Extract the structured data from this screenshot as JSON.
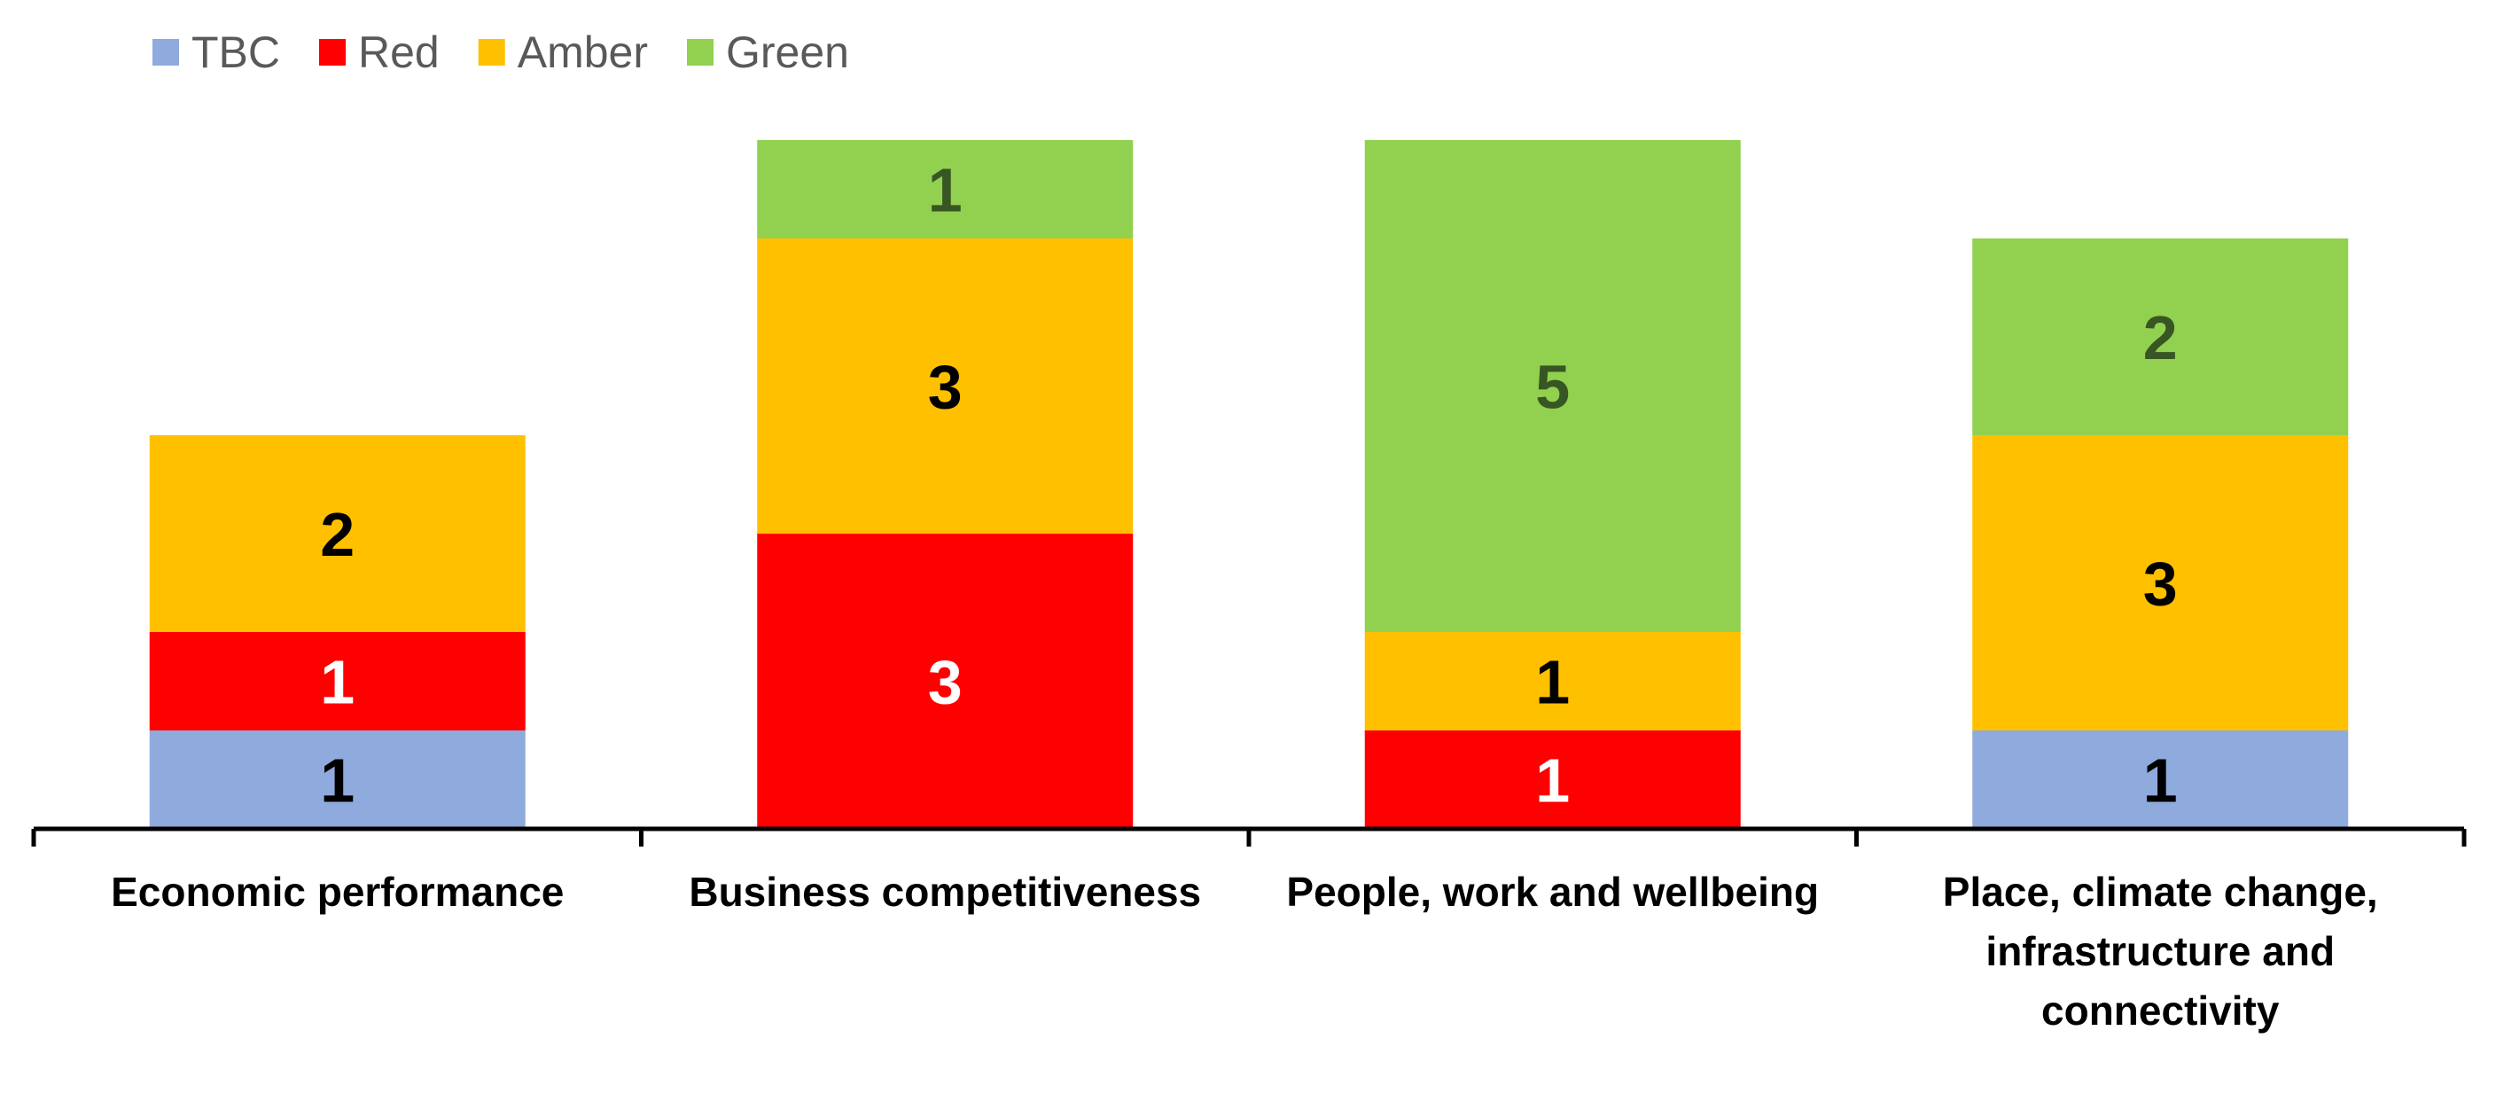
{
  "chart_data": {
    "type": "bar",
    "stacked": true,
    "categories": [
      [
        "Economic performance"
      ],
      [
        "Business competitiveness"
      ],
      [
        "People, work and wellbeing"
      ],
      [
        "Place, climate change,",
        "infrastructure and",
        "connectivity"
      ]
    ],
    "series": [
      {
        "name": "TBC",
        "color": "#8FAADC",
        "label_color": "#000000",
        "values": [
          1,
          0,
          0,
          1
        ]
      },
      {
        "name": "Red",
        "color": "#FF0000",
        "label_color": "#FFFFFF",
        "values": [
          1,
          3,
          1,
          0
        ]
      },
      {
        "name": "Amber",
        "color": "#FFC000",
        "label_color": "#000000",
        "values": [
          2,
          3,
          1,
          3
        ]
      },
      {
        "name": "Green",
        "color": "#92D050",
        "label_color": "#375623",
        "values": [
          0,
          1,
          5,
          2
        ]
      }
    ],
    "ylim": [
      0,
      7
    ],
    "legend_position": "top-left",
    "grid": false,
    "show_data_labels": true
  }
}
